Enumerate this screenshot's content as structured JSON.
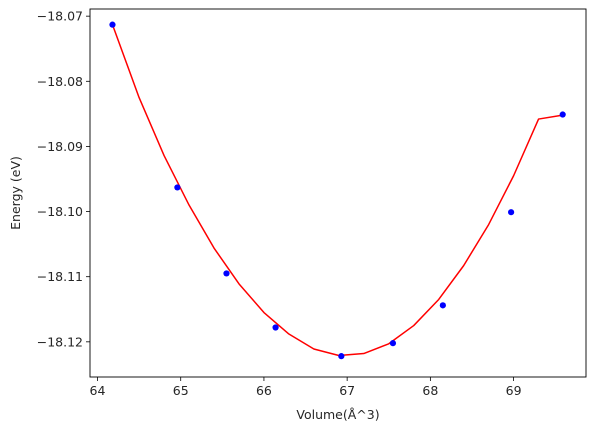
{
  "chart_data": {
    "type": "scatter",
    "title": "",
    "xlabel": "Volume(Å^3)",
    "ylabel": "Energy (eV)",
    "xlim": [
      63.91,
      69.87
    ],
    "ylim": [
      -18.1254,
      -18.0689
    ],
    "xticks": [
      64,
      65,
      66,
      67,
      68,
      69
    ],
    "yticks": [
      -18.07,
      -18.08,
      -18.09,
      -18.1,
      -18.11,
      -18.12
    ],
    "x_tick_labels": [
      "64",
      "65",
      "66",
      "67",
      "68",
      "69"
    ],
    "y_tick_labels": [
      "−18.07",
      "−18.08",
      "−18.09",
      "−18.10",
      "−18.11",
      "−18.12"
    ],
    "grid": false,
    "legend": "none",
    "series": [
      {
        "kind": "scatter",
        "color": "#0000ff",
        "marker": "circle",
        "x": [
          64.18,
          64.96,
          65.55,
          66.14,
          66.93,
          67.55,
          68.15,
          68.97,
          69.59
        ],
        "y": [
          -18.0713,
          -18.0963,
          -18.1095,
          -18.1178,
          -18.1222,
          -18.1202,
          -18.1144,
          -18.1001,
          -18.0851
        ]
      },
      {
        "kind": "line",
        "color": "#ff0000",
        "x": [
          64.18,
          64.5,
          64.8,
          65.1,
          65.4,
          65.7,
          66.0,
          66.3,
          66.6,
          66.9,
          67.2,
          67.5,
          67.8,
          68.1,
          68.4,
          68.7,
          69.0,
          69.3,
          69.59
        ],
        "y": [
          -18.0713,
          -18.0825,
          -18.0914,
          -18.099,
          -18.1056,
          -18.1111,
          -18.1155,
          -18.1188,
          -18.1211,
          -18.1221,
          -18.1218,
          -18.1203,
          -18.1175,
          -18.1135,
          -18.1083,
          -18.102,
          -18.0945,
          -18.0858,
          -18.0852
        ]
      }
    ]
  }
}
